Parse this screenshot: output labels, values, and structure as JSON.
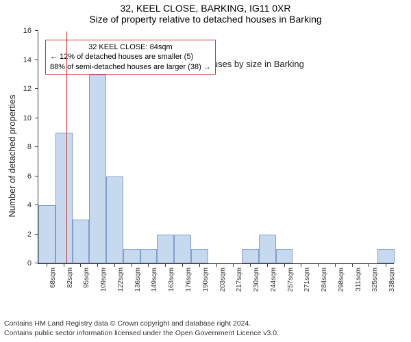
{
  "title": "32, KEEL CLOSE, BARKING, IG11 0XR",
  "subtitle": "Size of property relative to detached houses in Barking",
  "ylabel": "Number of detached properties",
  "xlabel": "Distribution of detached houses by size in Barking",
  "footnote1": "Contains HM Land Registry data © Crown copyright and database right 2024.",
  "footnote2": "Contains public sector information licensed under the Open Government Licence v3.0.",
  "chart": {
    "type": "histogram",
    "bar_fill": "#c7d9ee",
    "bar_stroke": "#7f9ec7",
    "background_color": "#ffffff",
    "ref_line_color": "#d03030",
    "ref_line_x_sqm": 84,
    "ylim": [
      0,
      16
    ],
    "ytick_step": 2,
    "x_start": 61.5,
    "x_end": 345,
    "x_tick_start": 68,
    "x_tick_step": 13.5,
    "x_tick_suffix": "sqm",
    "n_bars": 21,
    "bar_values": [
      4,
      9,
      3,
      13,
      6,
      1,
      1,
      2,
      2,
      1,
      0,
      0,
      1,
      2,
      1,
      0,
      0,
      0,
      0,
      0,
      1
    ],
    "title_fontsize": 14,
    "label_fontsize": 13,
    "tick_fontsize": 11
  },
  "annotation": {
    "border_color": "#d03030",
    "line1": "32 KEEL CLOSE: 84sqm",
    "line2": "← 12% of detached houses are smaller (5)",
    "line3": "88% of semi-detached houses are larger (38) →"
  }
}
